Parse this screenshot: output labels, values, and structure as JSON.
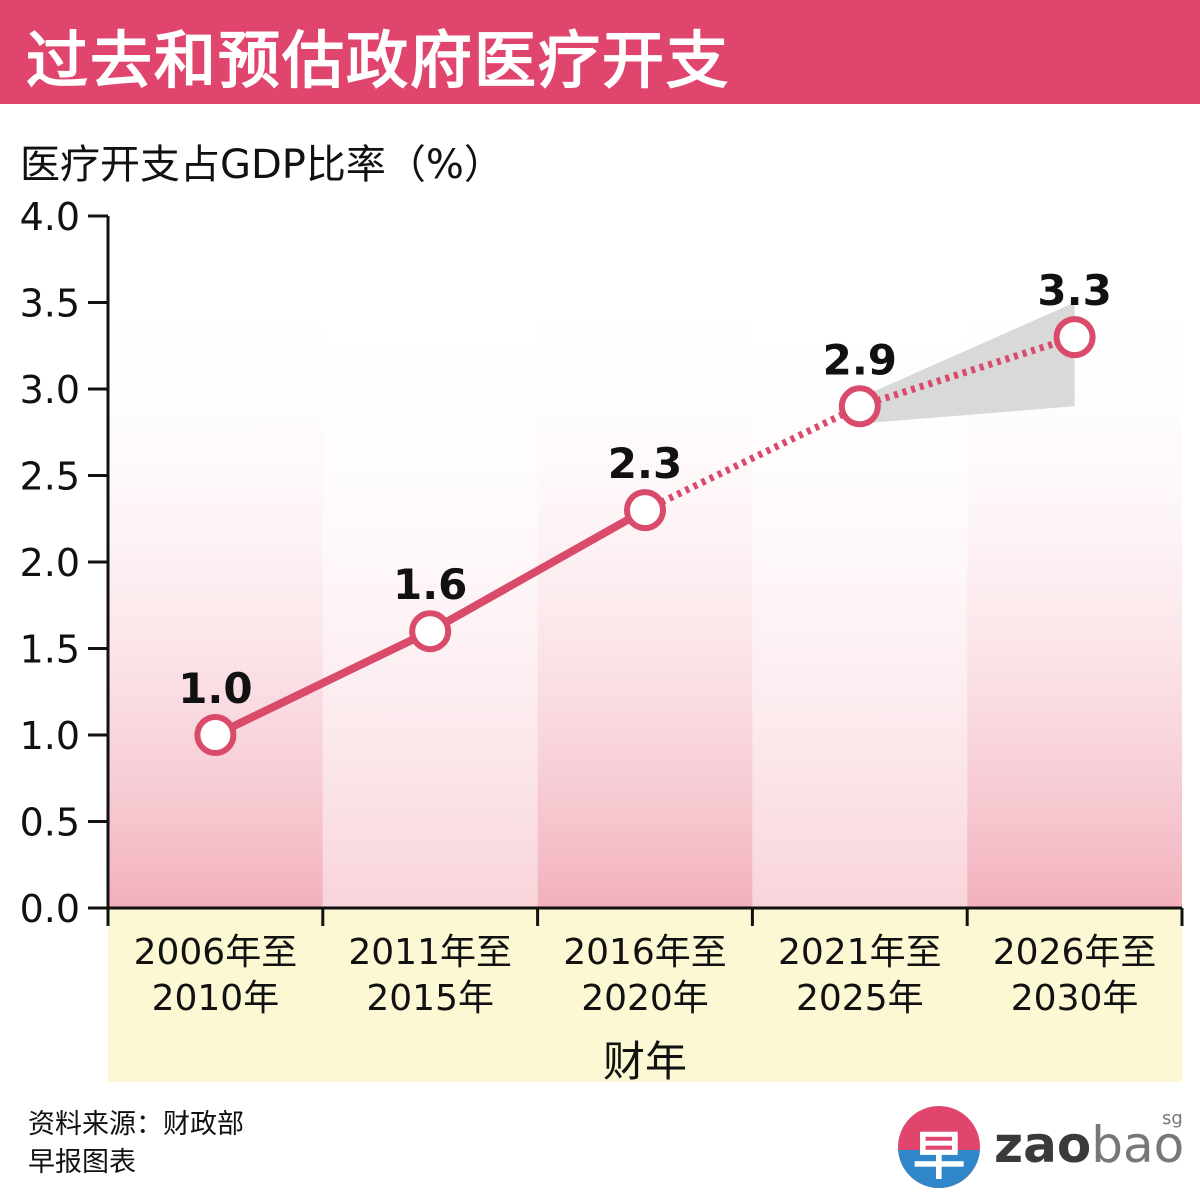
{
  "title": "过去和预估政府医疗开支",
  "chart_data": {
    "type": "line",
    "ylabel": "医疗开支占GDP比率（%）",
    "xlabel": "财年",
    "ylim": [
      0,
      4.0
    ],
    "yticks": [
      "0.0",
      "0.5",
      "1.0",
      "1.5",
      "2.0",
      "2.5",
      "3.0",
      "3.5",
      "4.0"
    ],
    "categories": [
      [
        "2006年至",
        "2010年"
      ],
      [
        "2011年至",
        "2015年"
      ],
      [
        "2016年至",
        "2020年"
      ],
      [
        "2021年至",
        "2025年"
      ],
      [
        "2026年至",
        "2030年"
      ]
    ],
    "values": [
      1.0,
      1.6,
      2.3,
      2.9,
      3.3
    ],
    "data_labels": [
      "1.0",
      "1.6",
      "2.3",
      "2.9",
      "3.3"
    ],
    "projected_from_index": 2,
    "projection_range": [
      {
        "index": 3,
        "low": 2.8,
        "high": 2.95
      },
      {
        "index": 4,
        "low": 2.9,
        "high": 3.5
      }
    ],
    "line_color": "#d94a6b",
    "band_color": "#f2b0bc",
    "range_color": "#d9d9d9",
    "grid": false
  },
  "footer": {
    "source": "资料来源：财政部",
    "credit": "早报图表"
  },
  "logo": {
    "char": "早",
    "zao": "zao",
    "bao": "bao",
    "sg": "sg"
  }
}
